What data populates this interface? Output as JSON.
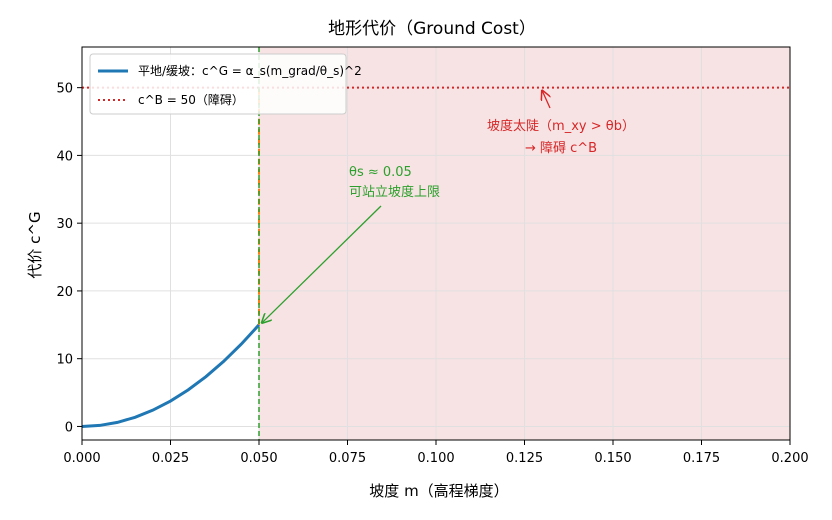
{
  "chart_data": {
    "type": "line",
    "title": "地形代价（Ground Cost）",
    "xlabel": "坡度 m（高程梯度）",
    "ylabel": "代价 c^G",
    "xlim": [
      0.0,
      0.2
    ],
    "ylim": [
      -2,
      56
    ],
    "xticks": [
      "0.000",
      "0.025",
      "0.050",
      "0.075",
      "0.100",
      "0.125",
      "0.150",
      "0.175",
      "0.200"
    ],
    "yticks": [
      "0",
      "10",
      "20",
      "30",
      "40",
      "50"
    ],
    "grid": true,
    "legend_position": "upper-left",
    "series": [
      {
        "name": "平地/缓坡：c^G = α_s(m_grad/θ_s)^2",
        "style": "solid",
        "color": "#1f77b4",
        "x": [
          0.0,
          0.005,
          0.01,
          0.015,
          0.02,
          0.025,
          0.03,
          0.035,
          0.04,
          0.045,
          0.05
        ],
        "y": [
          0.0,
          0.15,
          0.6,
          1.35,
          2.4,
          3.75,
          5.4,
          7.35,
          9.6,
          12.15,
          15.0
        ]
      },
      {
        "name": "c^B = 50（障碍）",
        "style": "dotted",
        "color": "#d62728",
        "x": [
          0.0,
          0.2
        ],
        "y": [
          50,
          50
        ]
      },
      {
        "name": "",
        "style": "dashed",
        "color": "#ff7f0e",
        "x": [
          0.05,
          0.05
        ],
        "y": [
          15,
          50
        ]
      }
    ],
    "vline": {
      "x": 0.05,
      "color": "#2ca02c",
      "style": "dashed"
    },
    "shaded_region": {
      "x_from": 0.05,
      "x_to": 0.2,
      "color": "#f8e3e4"
    },
    "annotations": {
      "threshold_line1": "θs ≈ 0.05",
      "threshold_line2": "可站立坡度上限",
      "threshold_point": [
        0.05,
        15
      ],
      "obstacle_line1": "坡度太陡（m_xy > θb）",
      "obstacle_line2": "→ 障碍 c^B",
      "obstacle_point": [
        0.13,
        50
      ]
    }
  }
}
